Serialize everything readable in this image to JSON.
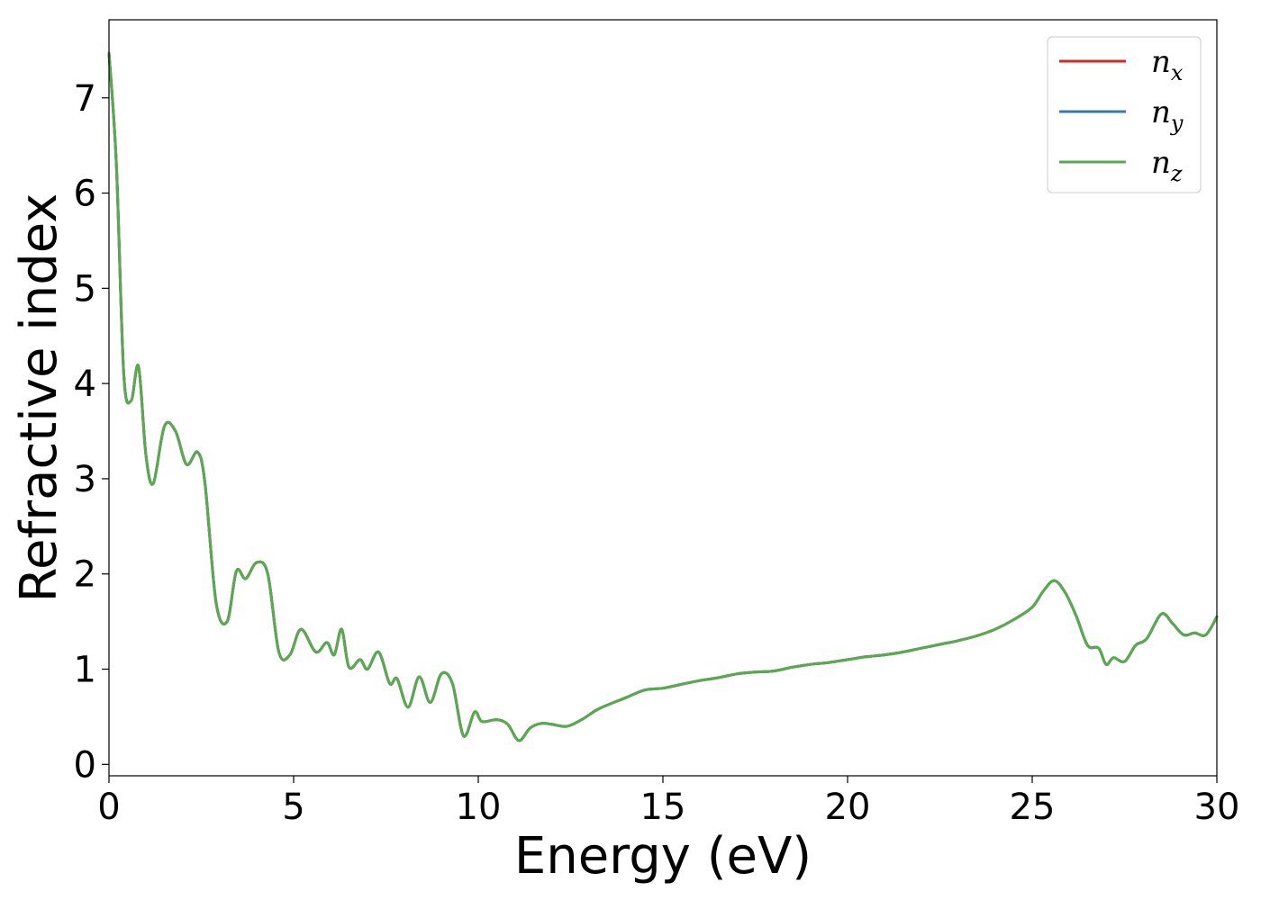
{
  "chart_data": {
    "type": "line",
    "xlabel": "Energy (eV)",
    "ylabel": "Refractive index",
    "xlim": [
      0,
      30
    ],
    "ylim": [
      -0.12,
      7.82
    ],
    "xticks": [
      0,
      5,
      10,
      15,
      20,
      25,
      30
    ],
    "yticks": [
      0,
      1,
      2,
      3,
      4,
      5,
      6,
      7
    ],
    "grid": false,
    "legend_position": "top-right",
    "x": [
      0,
      0.2,
      0.4,
      0.6,
      0.8,
      1.0,
      1.2,
      1.5,
      1.8,
      2.1,
      2.4,
      2.6,
      2.9,
      3.2,
      3.45,
      3.7,
      4.0,
      4.3,
      4.6,
      4.9,
      5.2,
      5.6,
      5.9,
      6.1,
      6.3,
      6.5,
      6.8,
      7.0,
      7.3,
      7.6,
      7.8,
      8.1,
      8.4,
      8.7,
      9.0,
      9.3,
      9.6,
      9.9,
      10.1,
      10.5,
      10.8,
      11.1,
      11.4,
      11.7,
      12.0,
      12.4,
      12.8,
      13.2,
      13.6,
      14.0,
      14.5,
      15.0,
      15.5,
      16.0,
      16.5,
      17.0,
      17.5,
      18.0,
      18.5,
      19.0,
      19.5,
      20.0,
      20.5,
      21.0,
      21.5,
      22.0,
      22.5,
      23.0,
      23.5,
      24.0,
      24.5,
      25.0,
      25.3,
      25.6,
      25.9,
      26.2,
      26.5,
      26.8,
      27.0,
      27.2,
      27.5,
      27.8,
      28.1,
      28.5,
      28.8,
      29.1,
      29.4,
      29.7,
      30.0
    ],
    "series": [
      {
        "name": "n_x",
        "color": "#d62728",
        "values": [
          7.47,
          6.3,
          4.1,
          3.82,
          4.18,
          3.25,
          2.95,
          3.55,
          3.5,
          3.15,
          3.28,
          2.95,
          1.7,
          1.5,
          2.03,
          1.95,
          2.12,
          2.0,
          1.18,
          1.15,
          1.42,
          1.18,
          1.28,
          1.15,
          1.42,
          1.02,
          1.1,
          1.0,
          1.18,
          0.85,
          0.9,
          0.6,
          0.92,
          0.65,
          0.95,
          0.85,
          0.3,
          0.55,
          0.45,
          0.47,
          0.42,
          0.25,
          0.38,
          0.43,
          0.42,
          0.4,
          0.47,
          0.57,
          0.64,
          0.7,
          0.78,
          0.8,
          0.84,
          0.88,
          0.91,
          0.95,
          0.97,
          0.98,
          1.02,
          1.05,
          1.07,
          1.1,
          1.13,
          1.15,
          1.18,
          1.22,
          1.26,
          1.3,
          1.35,
          1.42,
          1.52,
          1.65,
          1.82,
          1.93,
          1.8,
          1.55,
          1.25,
          1.22,
          1.05,
          1.12,
          1.08,
          1.25,
          1.32,
          1.58,
          1.48,
          1.36,
          1.38,
          1.36,
          1.55
        ]
      },
      {
        "name": "n_y",
        "color": "#3a78b0",
        "values": [
          7.47,
          6.3,
          4.1,
          3.82,
          4.18,
          3.25,
          2.95,
          3.55,
          3.5,
          3.15,
          3.28,
          2.95,
          1.7,
          1.5,
          2.03,
          1.95,
          2.12,
          2.0,
          1.18,
          1.15,
          1.42,
          1.18,
          1.28,
          1.15,
          1.42,
          1.02,
          1.1,
          1.0,
          1.18,
          0.85,
          0.9,
          0.6,
          0.92,
          0.65,
          0.95,
          0.85,
          0.3,
          0.55,
          0.45,
          0.47,
          0.42,
          0.25,
          0.38,
          0.43,
          0.42,
          0.4,
          0.47,
          0.57,
          0.64,
          0.7,
          0.78,
          0.8,
          0.84,
          0.88,
          0.91,
          0.95,
          0.97,
          0.98,
          1.02,
          1.05,
          1.07,
          1.1,
          1.13,
          1.15,
          1.18,
          1.22,
          1.26,
          1.3,
          1.35,
          1.42,
          1.52,
          1.65,
          1.82,
          1.93,
          1.8,
          1.55,
          1.25,
          1.22,
          1.05,
          1.12,
          1.08,
          1.25,
          1.32,
          1.58,
          1.48,
          1.36,
          1.38,
          1.36,
          1.55
        ]
      },
      {
        "name": "n_z",
        "color": "#59aa4f",
        "values": [
          7.47,
          6.3,
          4.1,
          3.82,
          4.18,
          3.25,
          2.95,
          3.55,
          3.5,
          3.15,
          3.28,
          2.95,
          1.7,
          1.5,
          2.03,
          1.95,
          2.12,
          2.0,
          1.18,
          1.15,
          1.42,
          1.18,
          1.28,
          1.15,
          1.42,
          1.02,
          1.1,
          1.0,
          1.18,
          0.85,
          0.9,
          0.6,
          0.92,
          0.65,
          0.95,
          0.85,
          0.3,
          0.55,
          0.45,
          0.47,
          0.42,
          0.25,
          0.38,
          0.43,
          0.42,
          0.4,
          0.47,
          0.57,
          0.64,
          0.7,
          0.78,
          0.8,
          0.84,
          0.88,
          0.91,
          0.95,
          0.97,
          0.98,
          1.02,
          1.05,
          1.07,
          1.1,
          1.13,
          1.15,
          1.18,
          1.22,
          1.26,
          1.3,
          1.35,
          1.42,
          1.52,
          1.65,
          1.82,
          1.93,
          1.8,
          1.55,
          1.25,
          1.22,
          1.05,
          1.12,
          1.08,
          1.25,
          1.32,
          1.58,
          1.48,
          1.36,
          1.38,
          1.36,
          1.55
        ]
      }
    ],
    "legend": [
      {
        "base": "n",
        "sub": "x"
      },
      {
        "base": "n",
        "sub": "y"
      },
      {
        "base": "n",
        "sub": "z"
      }
    ]
  }
}
